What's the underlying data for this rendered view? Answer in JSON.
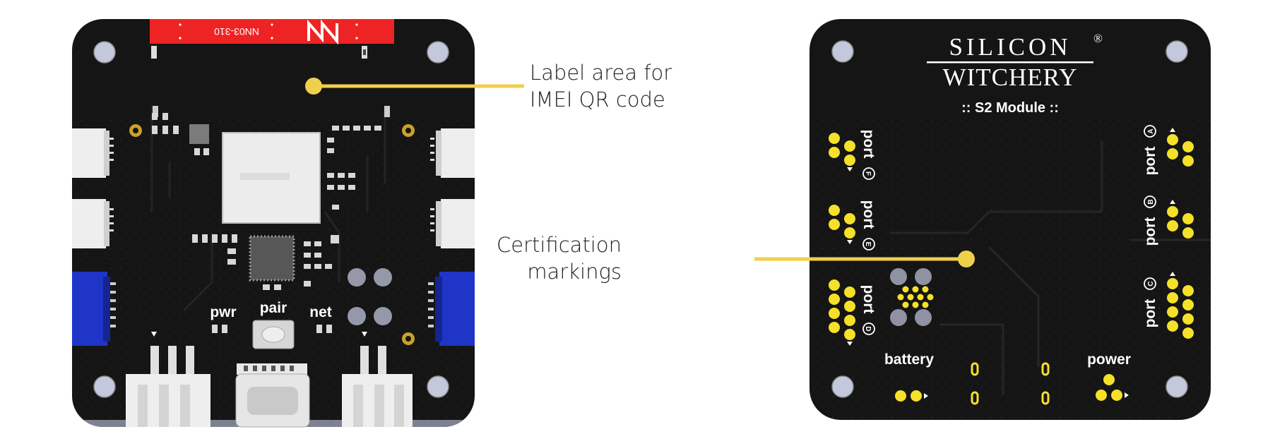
{
  "front": {
    "antenna_label": "NN03-310",
    "antenna_logo": "ignion-logo",
    "button_labels": {
      "pwr": "pwr",
      "pair": "pair",
      "net": "net"
    },
    "pcb_color": "#151515",
    "pad_color": "#f5e02a",
    "connector_blue": "#1f35c8",
    "antenna_red": "#ee2424"
  },
  "back": {
    "brand_line1": "SILICON",
    "brand_registered": "®",
    "brand_line2": "WITCHERY",
    "module_name": ":: S2 Module ::",
    "ports": {
      "a": {
        "word": "port",
        "letter": "A"
      },
      "b": {
        "word": "port",
        "letter": "B"
      },
      "c": {
        "word": "port",
        "letter": "C"
      },
      "d": {
        "word": "port",
        "letter": "D"
      },
      "e": {
        "word": "port",
        "letter": "E"
      },
      "f": {
        "word": "port",
        "letter": "F"
      }
    },
    "battery_label": "battery",
    "power_label": "power"
  },
  "callouts": {
    "qr": {
      "line1": "Label area for",
      "line2": "IMEI QR code",
      "color": "#f0cf4a"
    },
    "cert": {
      "line1": "Certification",
      "line2": "markings",
      "color": "#f0cf4a"
    }
  }
}
